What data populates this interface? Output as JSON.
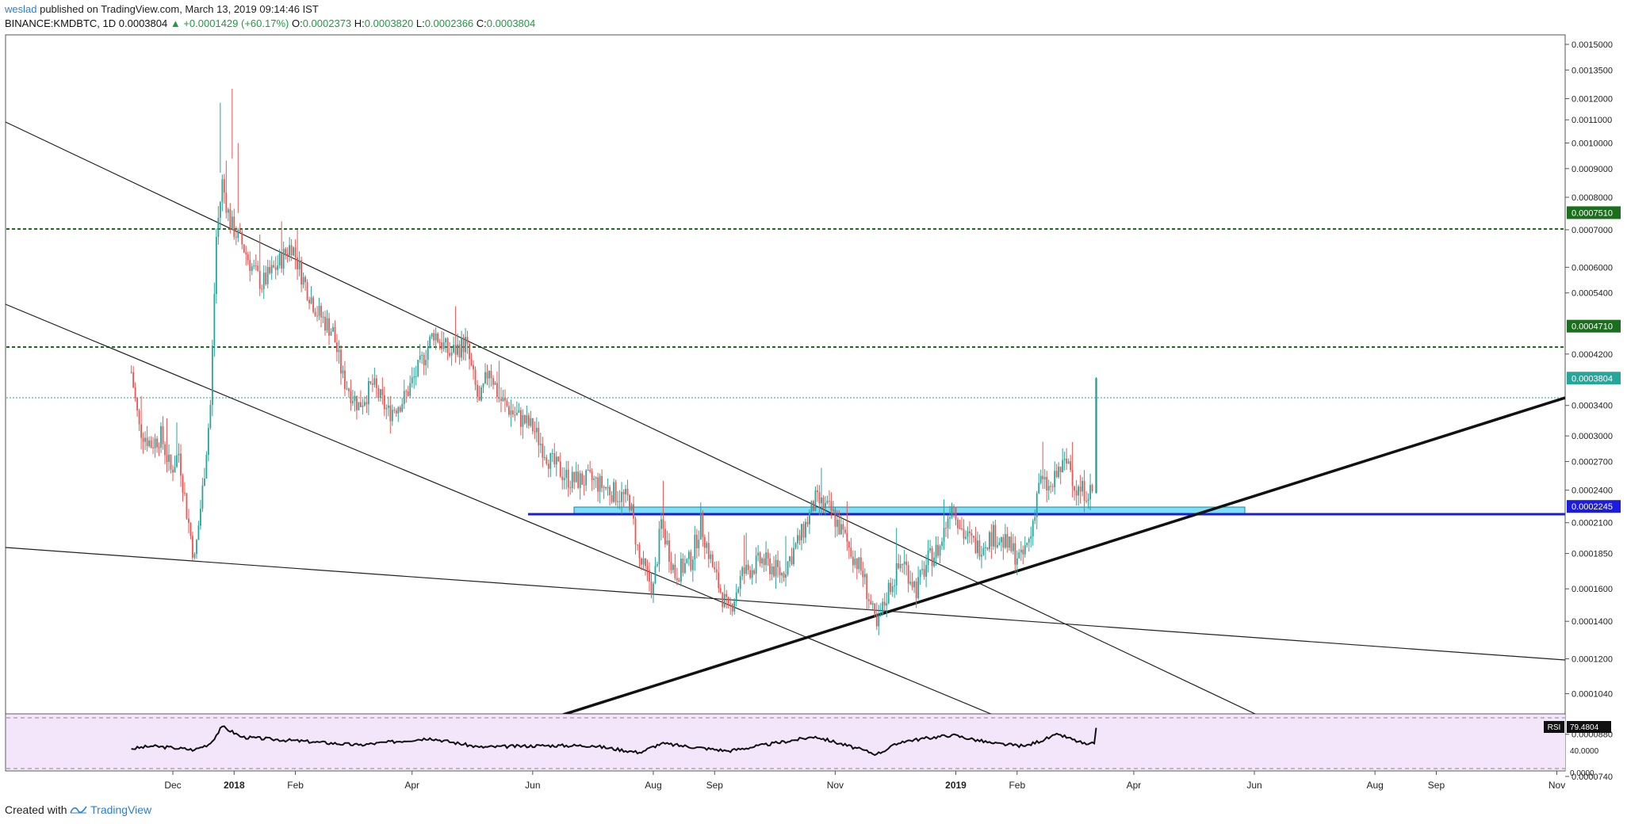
{
  "header": {
    "author": "weslad",
    "published_text": "published on TradingView.com, March 13, 2019 09:14:46 IST"
  },
  "ohlc": {
    "symbol": "BINANCE:KMDBTC, 1D",
    "last": "0.0003804",
    "change_arrow": "▲",
    "change": "+0.0001429 (+60.17%)",
    "o_label": "O:",
    "o": "0.0002373",
    "h_label": "H:",
    "h": "0.0003820",
    "l_label": "L:",
    "l": "0.0002366",
    "c_label": "C:",
    "c": "0.0003804"
  },
  "footer": {
    "created_with": "Created with",
    "brand": "TradingView"
  },
  "colors": {
    "up": "#26a69a",
    "down": "#ef5350",
    "level_line": "#1b6e1b",
    "support": "#1c1cdf",
    "zone_fill": "#7ee0f5",
    "rsi_bg": "#f3e6fb"
  },
  "chart_data": {
    "type": "candlestick",
    "symbol": "BINANCE:KMDBTC",
    "interval": "1D",
    "price_scale": "log",
    "y_ticks": [
      "0.0015000",
      "0.0013500",
      "0.0012000",
      "0.0011000",
      "0.0010000",
      "0.0009000",
      "0.0008000",
      "0.0007000",
      "0.0006000",
      "0.0005400",
      "0.0004200",
      "0.0003400",
      "0.0003000",
      "0.0002700",
      "0.0002400",
      "0.0002100",
      "0.0001850",
      "0.0001600",
      "0.0001400",
      "0.0001200",
      "0.0001040",
      "0.0000880",
      "0.0000740"
    ],
    "x_ticks": [
      "Dec",
      "2018",
      "Feb",
      "Apr",
      "Jun",
      "Aug",
      "Sep",
      "Nov",
      "2019",
      "Feb",
      "Apr",
      "Jun",
      "Aug",
      "Sep",
      "Nov"
    ],
    "x_tick_dates": [
      "2017-12-01",
      "2018-01-01",
      "2018-02-01",
      "2018-04-01",
      "2018-06-01",
      "2018-08-01",
      "2018-09-01",
      "2018-11-01",
      "2019-01-01",
      "2019-02-01",
      "2019-04-01",
      "2019-06-01",
      "2019-08-01",
      "2019-09-01",
      "2019-11-01"
    ],
    "price_labels": [
      {
        "value": "0.0007510",
        "kind": "resistance"
      },
      {
        "value": "0.0004710",
        "kind": "resistance"
      },
      {
        "value": "0.0003804",
        "kind": "last"
      },
      {
        "value": "0.0002245",
        "kind": "support"
      }
    ],
    "keyframes": [
      [
        "2017-11-10",
        0.00039
      ],
      [
        "2017-11-14",
        0.00031
      ],
      [
        "2017-11-20",
        0.00029
      ],
      [
        "2017-11-25",
        0.0003
      ],
      [
        "2017-11-30",
        0.00026
      ],
      [
        "2017-12-04",
        0.00028
      ],
      [
        "2017-12-08",
        0.00022
      ],
      [
        "2017-12-12",
        0.00018
      ],
      [
        "2017-12-16",
        0.00024
      ],
      [
        "2017-12-20",
        0.00034
      ],
      [
        "2017-12-23",
        0.00068
      ],
      [
        "2017-12-26",
        0.00085
      ],
      [
        "2017-12-30",
        0.00072
      ],
      [
        "2018-01-05",
        0.00066
      ],
      [
        "2018-01-10",
        0.0006
      ],
      [
        "2018-01-15",
        0.00056
      ],
      [
        "2018-01-22",
        0.0006
      ],
      [
        "2018-01-30",
        0.00066
      ],
      [
        "2018-02-05",
        0.00057
      ],
      [
        "2018-02-12",
        0.0005
      ],
      [
        "2018-02-20",
        0.00046
      ],
      [
        "2018-02-25",
        0.00038
      ],
      [
        "2018-03-05",
        0.00034
      ],
      [
        "2018-03-12",
        0.00037
      ],
      [
        "2018-03-20",
        0.00033
      ],
      [
        "2018-03-28",
        0.00035
      ],
      [
        "2018-04-05",
        0.0004
      ],
      [
        "2018-04-12",
        0.00046
      ],
      [
        "2018-04-20",
        0.00042
      ],
      [
        "2018-04-28",
        0.00044
      ],
      [
        "2018-05-05",
        0.00034
      ],
      [
        "2018-05-10",
        0.0004
      ],
      [
        "2018-05-15",
        0.00035
      ],
      [
        "2018-05-22",
        0.00033
      ],
      [
        "2018-06-01",
        0.00031
      ],
      [
        "2018-06-10",
        0.00027
      ],
      [
        "2018-06-20",
        0.00025
      ],
      [
        "2018-07-01",
        0.00025
      ],
      [
        "2018-07-10",
        0.00024
      ],
      [
        "2018-07-20",
        0.00023
      ],
      [
        "2018-07-25",
        0.00018
      ],
      [
        "2018-08-01",
        0.00016
      ],
      [
        "2018-08-05",
        0.00021
      ],
      [
        "2018-08-12",
        0.00017
      ],
      [
        "2018-08-20",
        0.00018
      ],
      [
        "2018-08-25",
        0.00021
      ],
      [
        "2018-09-01",
        0.00017
      ],
      [
        "2018-09-08",
        0.000145
      ],
      [
        "2018-09-15",
        0.00017
      ],
      [
        "2018-09-25",
        0.00018
      ],
      [
        "2018-10-05",
        0.00017
      ],
      [
        "2018-10-15",
        0.0002
      ],
      [
        "2018-10-22",
        0.00023
      ],
      [
        "2018-10-30",
        0.00022
      ],
      [
        "2018-11-08",
        0.00019
      ],
      [
        "2018-11-15",
        0.00017
      ],
      [
        "2018-11-22",
        0.000135
      ],
      [
        "2018-11-28",
        0.00016
      ],
      [
        "2018-12-05",
        0.00018
      ],
      [
        "2018-12-12",
        0.00016
      ],
      [
        "2018-12-18",
        0.00018
      ],
      [
        "2018-12-24",
        0.00019
      ],
      [
        "2018-12-30",
        0.00023
      ],
      [
        "2019-01-05",
        0.0002
      ],
      [
        "2019-01-12",
        0.00019
      ],
      [
        "2019-01-20",
        0.0002
      ],
      [
        "2019-01-28",
        0.00019
      ],
      [
        "2019-02-03",
        0.00018
      ],
      [
        "2019-02-08",
        0.0002
      ],
      [
        "2019-02-12",
        0.00025
      ],
      [
        "2019-02-18",
        0.00024
      ],
      [
        "2019-02-22",
        0.00026
      ],
      [
        "2019-02-27",
        0.00027
      ],
      [
        "2019-03-03",
        0.00024
      ],
      [
        "2019-03-08",
        0.00024
      ],
      [
        "2019-03-12",
        0.0002373
      ]
    ],
    "last_candle": {
      "date": "2019-03-13",
      "o": 0.0002373,
      "h": 0.000382,
      "l": 0.0002366,
      "c": 0.0003804
    },
    "rsi": {
      "label": "RSI",
      "value": "79.4804",
      "y_ticks": [
        "40.0000",
        "0.0000"
      ],
      "keyframes": [
        [
          "2017-11-10",
          40
        ],
        [
          "2017-11-20",
          45
        ],
        [
          "2017-12-01",
          42
        ],
        [
          "2017-12-12",
          38
        ],
        [
          "2017-12-20",
          50
        ],
        [
          "2017-12-26",
          82
        ],
        [
          "2018-01-05",
          62
        ],
        [
          "2018-01-20",
          58
        ],
        [
          "2018-02-10",
          53
        ],
        [
          "2018-03-05",
          47
        ],
        [
          "2018-04-10",
          60
        ],
        [
          "2018-05-05",
          43
        ],
        [
          "2018-06-05",
          46
        ],
        [
          "2018-07-01",
          46
        ],
        [
          "2018-07-25",
          33
        ],
        [
          "2018-08-05",
          50
        ],
        [
          "2018-09-08",
          36
        ],
        [
          "2018-10-22",
          63
        ],
        [
          "2018-11-22",
          30
        ],
        [
          "2018-12-05",
          54
        ],
        [
          "2018-12-30",
          66
        ],
        [
          "2019-01-20",
          50
        ],
        [
          "2019-02-05",
          45
        ],
        [
          "2019-02-22",
          67
        ],
        [
          "2019-03-08",
          48
        ],
        [
          "2019-03-12",
          50
        ],
        [
          "2019-03-13",
          79.48
        ]
      ]
    }
  }
}
